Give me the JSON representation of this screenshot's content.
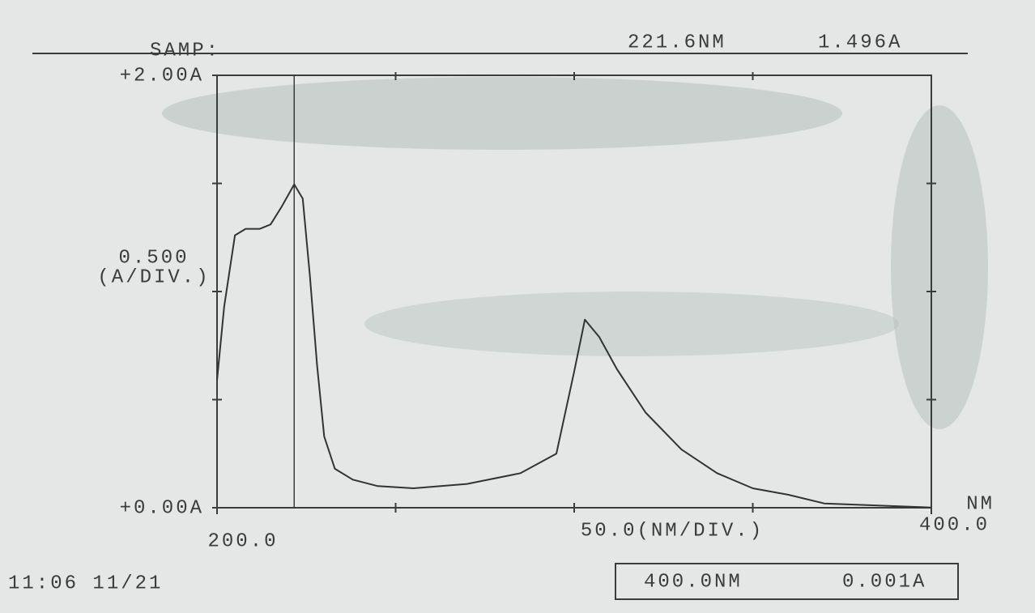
{
  "header": {
    "label": "SAMP:"
  },
  "chart_data": {
    "type": "line",
    "x": [
      200,
      202,
      205,
      208,
      212,
      215,
      218,
      221.6,
      224,
      226,
      228,
      230,
      233,
      238,
      245,
      255,
      270,
      285,
      295,
      300,
      303,
      307,
      312,
      320,
      330,
      340,
      350,
      360,
      370,
      385,
      400
    ],
    "series": [
      {
        "color": "#333333",
        "values": [
          0.59,
          0.93,
          1.26,
          1.29,
          1.29,
          1.31,
          1.39,
          1.496,
          1.43,
          1.07,
          0.66,
          0.33,
          0.18,
          0.13,
          0.1,
          0.09,
          0.11,
          0.16,
          0.25,
          0.63,
          0.87,
          0.79,
          0.64,
          0.44,
          0.27,
          0.16,
          0.09,
          0.06,
          0.02,
          0.01,
          0.001
        ]
      }
    ],
    "xlim": [
      200,
      400
    ],
    "ylim": [
      0,
      2
    ],
    "xticks": [
      {
        "value": 200,
        "label": "200.0"
      },
      {
        "value": 400,
        "label": "400.0"
      }
    ],
    "xminor_ticks": [
      250,
      300,
      350
    ],
    "yticks": [
      {
        "value": 0,
        "label": "+0.00A"
      },
      {
        "value": 2,
        "label": "+2.00A"
      }
    ],
    "yminor_ticks": [
      0.5,
      1,
      1.5
    ],
    "x_unit": "NM",
    "x_scale_label": "50.0(NM/DIV.)",
    "y_scale_label": [
      "0.500",
      "(A/DIV.)"
    ],
    "cursor": {
      "x": 221.6,
      "y": 1.496,
      "x_label": "221.6NM",
      "y_label": "1.496A"
    }
  },
  "footer": {
    "timestamp": "11:06 11/21",
    "readout": {
      "x_label": "400.0NM",
      "y_label": "0.001A"
    }
  }
}
